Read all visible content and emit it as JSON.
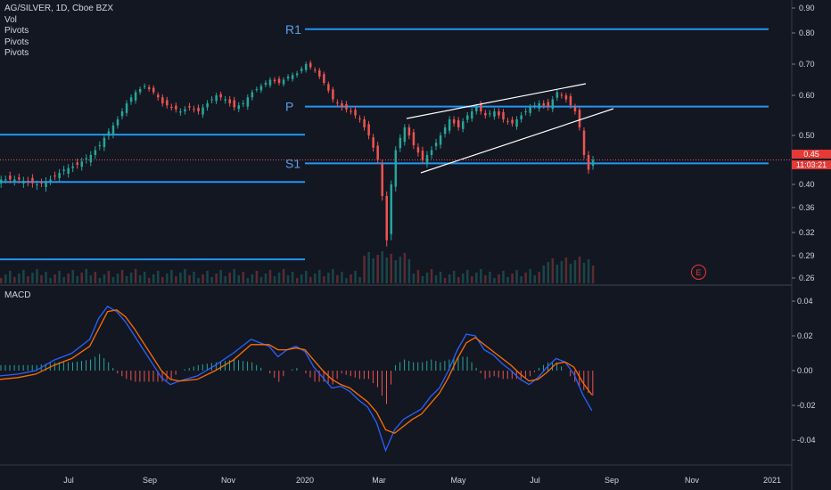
{
  "legend": {
    "symbol": "AG/SILVER, 1D, Cboe BZX",
    "lines": [
      "Vol",
      "Pivots",
      "Pivots",
      "Pivots"
    ]
  },
  "macd_label": "MACD",
  "price_tag": {
    "value": "0.45",
    "countdown": "11:03:21"
  },
  "earnings_marker": "E",
  "colors": {
    "up": "#26a69a",
    "down": "#ef5350",
    "pivot": "#2196f3",
    "macd": "#2962ff",
    "signal": "#ff6d00",
    "background": "#131722"
  },
  "chart_data": [
    {
      "type": "candlestick",
      "title": "AG/SILVER, 1D, Cboe BZX",
      "ylim": [
        0.25,
        0.9
      ],
      "y_ticks": [
        "0.90",
        "0.80",
        "0.70",
        "0.60",
        "0.50",
        "0.40",
        "0.36",
        "0.32",
        "0.29",
        "0.26"
      ],
      "y_tick_values": [
        0.9,
        0.8,
        0.7,
        0.6,
        0.5,
        0.4,
        0.36,
        0.32,
        0.29,
        0.26
      ],
      "x_ticks": [
        "Jul",
        "Sep",
        "Nov",
        "2020",
        "Mar",
        "May",
        "Jul",
        "Sep",
        "Nov",
        "2021"
      ],
      "close_path": [
        [
          0,
          0.41
        ],
        [
          4,
          0.41
        ],
        [
          8,
          0.4
        ],
        [
          11,
          0.41
        ],
        [
          14,
          0.43
        ],
        [
          17,
          0.44
        ],
        [
          20,
          0.46
        ],
        [
          22,
          0.48
        ],
        [
          24,
          0.51
        ],
        [
          26,
          0.54
        ],
        [
          28,
          0.58
        ],
        [
          30,
          0.61
        ],
        [
          32,
          0.63
        ],
        [
          34,
          0.61
        ],
        [
          36,
          0.58
        ],
        [
          38,
          0.57
        ],
        [
          40,
          0.56
        ],
        [
          42,
          0.57
        ],
        [
          44,
          0.56
        ],
        [
          46,
          0.58
        ],
        [
          48,
          0.6
        ],
        [
          50,
          0.59
        ],
        [
          52,
          0.57
        ],
        [
          54,
          0.58
        ],
        [
          56,
          0.61
        ],
        [
          58,
          0.63
        ],
        [
          60,
          0.65
        ],
        [
          62,
          0.64
        ],
        [
          64,
          0.66
        ],
        [
          66,
          0.67
        ],
        [
          68,
          0.7
        ],
        [
          70,
          0.68
        ],
        [
          72,
          0.64
        ],
        [
          74,
          0.59
        ],
        [
          76,
          0.57
        ],
        [
          78,
          0.56
        ],
        [
          80,
          0.54
        ],
        [
          82,
          0.5
        ],
        [
          84,
          0.45
        ],
        [
          85,
          0.38
        ],
        [
          86,
          0.31
        ],
        [
          87,
          0.4
        ],
        [
          88,
          0.47
        ],
        [
          90,
          0.52
        ],
        [
          92,
          0.48
        ],
        [
          94,
          0.45
        ],
        [
          96,
          0.47
        ],
        [
          98,
          0.5
        ],
        [
          100,
          0.54
        ],
        [
          102,
          0.52
        ],
        [
          104,
          0.55
        ],
        [
          106,
          0.57
        ],
        [
          108,
          0.55
        ],
        [
          110,
          0.56
        ],
        [
          112,
          0.54
        ],
        [
          114,
          0.53
        ],
        [
          116,
          0.55
        ],
        [
          118,
          0.57
        ],
        [
          120,
          0.58
        ],
        [
          122,
          0.57
        ],
        [
          124,
          0.61
        ],
        [
          126,
          0.59
        ],
        [
          128,
          0.56
        ],
        [
          129,
          0.52
        ],
        [
          130,
          0.46
        ],
        [
          131,
          0.43
        ],
        [
          132,
          0.45
        ]
      ],
      "levels": [
        {
          "label": "R1",
          "value": 0.815
        },
        {
          "label": "P",
          "value": 0.572
        },
        {
          "label": "S1",
          "value": 0.443
        },
        {
          "label": "",
          "value": 0.502
        },
        {
          "label": "",
          "value": 0.405
        },
        {
          "label": "",
          "value": 0.285
        }
      ],
      "last_price": 0.45,
      "x_range_days": [
        0,
        172
      ]
    },
    {
      "type": "line",
      "title": "MACD",
      "ylim": [
        -0.05,
        0.045
      ],
      "y_ticks": [
        "0.04",
        "0.02",
        "0.00",
        "-0.02",
        "-0.04"
      ],
      "y_tick_values": [
        0.04,
        0.02,
        0.0,
        -0.02,
        -0.04
      ],
      "series": [
        {
          "name": "",
          "color": "#2962ff",
          "values": [
            [
              0,
              -0.003
            ],
            [
              4,
              -0.002
            ],
            [
              8,
              0.0
            ],
            [
              12,
              0.006
            ],
            [
              16,
              0.01
            ],
            [
              20,
              0.018
            ],
            [
              22,
              0.03
            ],
            [
              24,
              0.037
            ],
            [
              26,
              0.034
            ],
            [
              28,
              0.028
            ],
            [
              30,
              0.02
            ],
            [
              32,
              0.012
            ],
            [
              34,
              0.004
            ],
            [
              36,
              -0.004
            ],
            [
              38,
              -0.008
            ],
            [
              40,
              -0.006
            ],
            [
              44,
              -0.003
            ],
            [
              48,
              0.003
            ],
            [
              52,
              0.01
            ],
            [
              56,
              0.018
            ],
            [
              60,
              0.014
            ],
            [
              62,
              0.008
            ],
            [
              64,
              0.012
            ],
            [
              66,
              0.014
            ],
            [
              68,
              0.011
            ],
            [
              70,
              0.002
            ],
            [
              72,
              -0.004
            ],
            [
              74,
              -0.01
            ],
            [
              76,
              -0.009
            ],
            [
              78,
              -0.012
            ],
            [
              80,
              -0.017
            ],
            [
              82,
              -0.021
            ],
            [
              84,
              -0.03
            ],
            [
              86,
              -0.046
            ],
            [
              88,
              -0.034
            ],
            [
              90,
              -0.028
            ],
            [
              92,
              -0.025
            ],
            [
              94,
              -0.022
            ],
            [
              96,
              -0.015
            ],
            [
              98,
              -0.01
            ],
            [
              100,
              0.0
            ],
            [
              102,
              0.012
            ],
            [
              104,
              0.021
            ],
            [
              106,
              0.02
            ],
            [
              108,
              0.012
            ],
            [
              110,
              0.009
            ],
            [
              112,
              0.004
            ],
            [
              114,
              0.0
            ],
            [
              116,
              -0.005
            ],
            [
              118,
              -0.008
            ],
            [
              120,
              -0.004
            ],
            [
              122,
              0.002
            ],
            [
              124,
              0.007
            ],
            [
              126,
              0.005
            ],
            [
              128,
              -0.002
            ],
            [
              130,
              -0.014
            ],
            [
              132,
              -0.023
            ]
          ]
        },
        {
          "name": "",
          "color": "#ff6d00",
          "values": [
            [
              0,
              -0.005
            ],
            [
              4,
              -0.004
            ],
            [
              8,
              -0.002
            ],
            [
              12,
              0.003
            ],
            [
              16,
              0.007
            ],
            [
              20,
              0.014
            ],
            [
              22,
              0.024
            ],
            [
              24,
              0.034
            ],
            [
              26,
              0.035
            ],
            [
              28,
              0.031
            ],
            [
              30,
              0.024
            ],
            [
              32,
              0.016
            ],
            [
              34,
              0.008
            ],
            [
              36,
              0.0
            ],
            [
              38,
              -0.005
            ],
            [
              40,
              -0.006
            ],
            [
              44,
              -0.005
            ],
            [
              48,
              0.0
            ],
            [
              52,
              0.006
            ],
            [
              56,
              0.015
            ],
            [
              60,
              0.015
            ],
            [
              62,
              0.012
            ],
            [
              64,
              0.012
            ],
            [
              66,
              0.013
            ],
            [
              68,
              0.012
            ],
            [
              70,
              0.006
            ],
            [
              72,
              0.0
            ],
            [
              74,
              -0.005
            ],
            [
              76,
              -0.008
            ],
            [
              78,
              -0.01
            ],
            [
              80,
              -0.014
            ],
            [
              82,
              -0.018
            ],
            [
              84,
              -0.024
            ],
            [
              86,
              -0.034
            ],
            [
              88,
              -0.036
            ],
            [
              90,
              -0.032
            ],
            [
              92,
              -0.028
            ],
            [
              94,
              -0.025
            ],
            [
              96,
              -0.019
            ],
            [
              98,
              -0.013
            ],
            [
              100,
              -0.004
            ],
            [
              102,
              0.007
            ],
            [
              104,
              0.016
            ],
            [
              106,
              0.019
            ],
            [
              108,
              0.015
            ],
            [
              110,
              0.011
            ],
            [
              112,
              0.007
            ],
            [
              114,
              0.003
            ],
            [
              116,
              -0.002
            ],
            [
              118,
              -0.006
            ],
            [
              120,
              -0.005
            ],
            [
              122,
              -0.001
            ],
            [
              124,
              0.004
            ],
            [
              126,
              0.005
            ],
            [
              128,
              0.002
            ],
            [
              130,
              -0.007
            ],
            [
              132,
              -0.014
            ]
          ]
        }
      ],
      "x_ticks": [
        "Jul",
        "Sep",
        "Nov",
        "2020",
        "Mar",
        "May",
        "Jul",
        "Sep",
        "Nov",
        "2021"
      ]
    }
  ]
}
